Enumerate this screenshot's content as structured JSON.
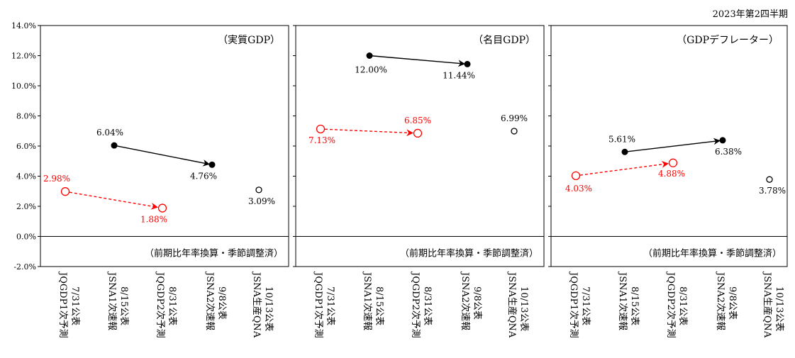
{
  "page": {
    "quarter_label": "2023年第2四半期"
  },
  "colors": {
    "preliminary": "#000000",
    "forecast": "#ff0000",
    "panel_border": "#000000",
    "grid": "#000000"
  },
  "chart_data": [
    {
      "type": "scatter",
      "title": "（実質GDP）",
      "note": "（前期比年率換算・季節調整済）",
      "ylim": [
        -2.0,
        14.0
      ],
      "yticks": [
        "-2.0%",
        "0.0%",
        "2.0%",
        "4.0%",
        "6.0%",
        "8.0%",
        "10.0%",
        "12.0%",
        "14.0%"
      ],
      "ytick_values": [
        -2,
        0,
        2,
        4,
        6,
        8,
        10,
        12,
        14
      ],
      "categories": [
        {
          "date": "7/31公表",
          "name": "JQGDP1次予測"
        },
        {
          "date": "8/15公表",
          "name": "JSNA1次速報"
        },
        {
          "date": "8/31公表",
          "name": "JQGDP2次予測"
        },
        {
          "date": "9/8公表",
          "name": "JSNA2次速報"
        },
        {
          "date": "10/13公表",
          "name": "JSNA生産QNA"
        }
      ],
      "points": [
        {
          "cat": 0,
          "value": 2.98,
          "label": "2.98%",
          "style": "open",
          "color": "red"
        },
        {
          "cat": 1,
          "value": 6.04,
          "label": "6.04%",
          "style": "filled",
          "color": "black"
        },
        {
          "cat": 2,
          "value": 1.88,
          "label": "1.88%",
          "style": "open",
          "color": "red"
        },
        {
          "cat": 3,
          "value": 4.76,
          "label": "4.76%",
          "style": "filled",
          "color": "black"
        },
        {
          "cat": 4,
          "value": 3.09,
          "label": "3.09%",
          "style": "open",
          "color": "black"
        }
      ],
      "arrows": [
        {
          "from": 1,
          "to": 3,
          "style": "solid",
          "color": "black"
        },
        {
          "from": 0,
          "to": 2,
          "style": "dashed",
          "color": "red"
        }
      ]
    },
    {
      "type": "scatter",
      "title": "（名目GDP）",
      "note": "（前期比年率換算・季節調整済）",
      "ylim": [
        -2.0,
        14.0
      ],
      "ytick_values": [
        -2,
        0,
        2,
        4,
        6,
        8,
        10,
        12,
        14
      ],
      "categories": [
        {
          "date": "7/31公表",
          "name": "JQGDP1次予測"
        },
        {
          "date": "8/15公表",
          "name": "JSNA1次速報"
        },
        {
          "date": "8/31公表",
          "name": "JQGDP2次予測"
        },
        {
          "date": "9/8公表",
          "name": "JSNA2次速報"
        },
        {
          "date": "10/13公表",
          "name": "JSNA生産QNA"
        }
      ],
      "points": [
        {
          "cat": 0,
          "value": 7.13,
          "label": "7.13%",
          "style": "open",
          "color": "red"
        },
        {
          "cat": 1,
          "value": 12.0,
          "label": "12.00%",
          "style": "filled",
          "color": "black"
        },
        {
          "cat": 2,
          "value": 6.85,
          "label": "6.85%",
          "style": "open",
          "color": "red"
        },
        {
          "cat": 3,
          "value": 11.44,
          "label": "11.44%",
          "style": "filled",
          "color": "black"
        },
        {
          "cat": 4,
          "value": 6.99,
          "label": "6.99%",
          "style": "open",
          "color": "black"
        }
      ],
      "arrows": [
        {
          "from": 1,
          "to": 3,
          "style": "solid",
          "color": "black"
        },
        {
          "from": 0,
          "to": 2,
          "style": "dashed",
          "color": "red"
        }
      ]
    },
    {
      "type": "scatter",
      "title": "（GDPデフレーター）",
      "note": "（前期比年率換算・季節調整済）",
      "ylim": [
        -2.0,
        14.0
      ],
      "ytick_values": [
        -2,
        0,
        2,
        4,
        6,
        8,
        10,
        12,
        14
      ],
      "categories": [
        {
          "date": "7/31公表",
          "name": "JQGDP1次予測"
        },
        {
          "date": "8/15公表",
          "name": "JSNA1次速報"
        },
        {
          "date": "8/31公表",
          "name": "JQGDP2次予測"
        },
        {
          "date": "9/8公表",
          "name": "JSNA2次速報"
        },
        {
          "date": "10/13公表",
          "name": "JSNA生産QNA"
        }
      ],
      "points": [
        {
          "cat": 0,
          "value": 4.03,
          "label": "4.03%",
          "style": "open",
          "color": "red"
        },
        {
          "cat": 1,
          "value": 5.61,
          "label": "5.61%",
          "style": "filled",
          "color": "black"
        },
        {
          "cat": 2,
          "value": 4.88,
          "label": "4.88%",
          "style": "open",
          "color": "red"
        },
        {
          "cat": 3,
          "value": 6.38,
          "label": "6.38%",
          "style": "filled",
          "color": "black"
        },
        {
          "cat": 4,
          "value": 3.78,
          "label": "3.78%",
          "style": "open",
          "color": "black"
        }
      ],
      "arrows": [
        {
          "from": 1,
          "to": 3,
          "style": "solid",
          "color": "black"
        },
        {
          "from": 0,
          "to": 2,
          "style": "dashed",
          "color": "red"
        }
      ]
    }
  ]
}
